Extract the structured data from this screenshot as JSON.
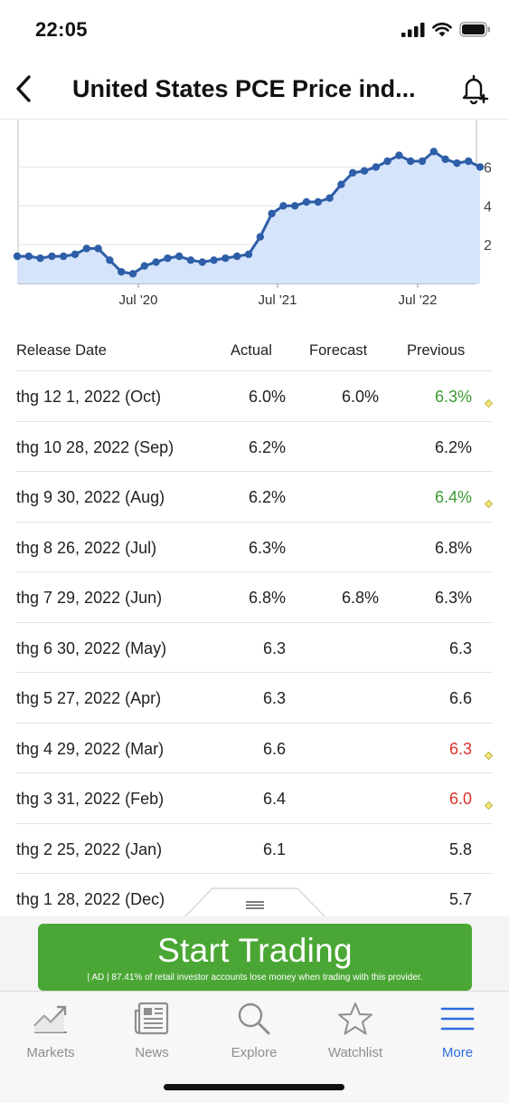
{
  "status_bar": {
    "time": "22:05"
  },
  "header": {
    "title": "United States PCE Price ind..."
  },
  "colors": {
    "positive": "#3a9a32",
    "negative": "#e0302a",
    "accent": "#2e6de1",
    "line": "#2e5ea8",
    "fill": "#d5e4fa",
    "ad_green": "#4ba735"
  },
  "chart_data": {
    "type": "area",
    "x_ticks": [
      "Jul '20",
      "Jul '21",
      "Jul '22"
    ],
    "y_ticks": [
      "2",
      "4",
      "6"
    ],
    "ylim": [
      0,
      8.4
    ],
    "series": [
      {
        "values": [
          1.4,
          1.4,
          1.3,
          1.4,
          1.4,
          1.5,
          1.8,
          1.8,
          1.2,
          0.6,
          0.5,
          0.9,
          1.1,
          1.3,
          1.4,
          1.2,
          1.1,
          1.2,
          1.3,
          1.4,
          1.5,
          2.4,
          3.6,
          4.0,
          4.0,
          4.2,
          4.2,
          4.4,
          5.1,
          5.7,
          5.8,
          6.0,
          6.3,
          6.6,
          6.3,
          6.3,
          6.8,
          6.4,
          6.2,
          6.3,
          6.0
        ]
      }
    ]
  },
  "table": {
    "headers": {
      "date": "Release Date",
      "actual": "Actual",
      "forecast": "Forecast",
      "previous": "Previous"
    },
    "rows": [
      {
        "date": "thg 12 1, 2022 (Oct)",
        "actual": "6.0%",
        "forecast": "6.0%",
        "previous": "6.3%",
        "prev_color": "positive",
        "revised": true
      },
      {
        "date": "thg 10 28, 2022 (Sep)",
        "actual": "6.2%",
        "forecast": "",
        "previous": "6.2%",
        "prev_color": "default",
        "revised": false
      },
      {
        "date": "thg 9 30, 2022 (Aug)",
        "actual": "6.2%",
        "forecast": "",
        "previous": "6.4%",
        "prev_color": "positive",
        "revised": true
      },
      {
        "date": "thg 8 26, 2022 (Jul)",
        "actual": "6.3%",
        "forecast": "",
        "previous": "6.8%",
        "prev_color": "default",
        "revised": false
      },
      {
        "date": "thg 7 29, 2022 (Jun)",
        "actual": "6.8%",
        "forecast": "6.8%",
        "previous": "6.3%",
        "prev_color": "default",
        "revised": false
      },
      {
        "date": "thg 6 30, 2022 (May)",
        "actual": "6.3",
        "forecast": "",
        "previous": "6.3",
        "prev_color": "default",
        "revised": false
      },
      {
        "date": "thg 5 27, 2022 (Apr)",
        "actual": "6.3",
        "forecast": "",
        "previous": "6.6",
        "prev_color": "default",
        "revised": false
      },
      {
        "date": "thg 4 29, 2022 (Mar)",
        "actual": "6.6",
        "forecast": "",
        "previous": "6.3",
        "prev_color": "negative",
        "revised": true
      },
      {
        "date": "thg 3 31, 2022 (Feb)",
        "actual": "6.4",
        "forecast": "",
        "previous": "6.0",
        "prev_color": "negative",
        "revised": true
      },
      {
        "date": "thg 2 25, 2022 (Jan)",
        "actual": "6.1",
        "forecast": "",
        "previous": "5.8",
        "prev_color": "default",
        "revised": false
      },
      {
        "date": "thg 1 28, 2022 (Dec)",
        "actual": "",
        "forecast": "",
        "previous": "5.7",
        "prev_color": "default",
        "revised": false
      }
    ]
  },
  "ad": {
    "title": "Start Trading",
    "disclaimer": "| AD | 87.41% of retail investor accounts lose money when trading with this provider."
  },
  "tabs": [
    {
      "label": "Markets",
      "icon": "markets-chart-icon",
      "active": false
    },
    {
      "label": "News",
      "icon": "news-icon",
      "active": false
    },
    {
      "label": "Explore",
      "icon": "search-icon",
      "active": false
    },
    {
      "label": "Watchlist",
      "icon": "star-icon",
      "active": false
    },
    {
      "label": "More",
      "icon": "menu-icon",
      "active": true
    }
  ]
}
